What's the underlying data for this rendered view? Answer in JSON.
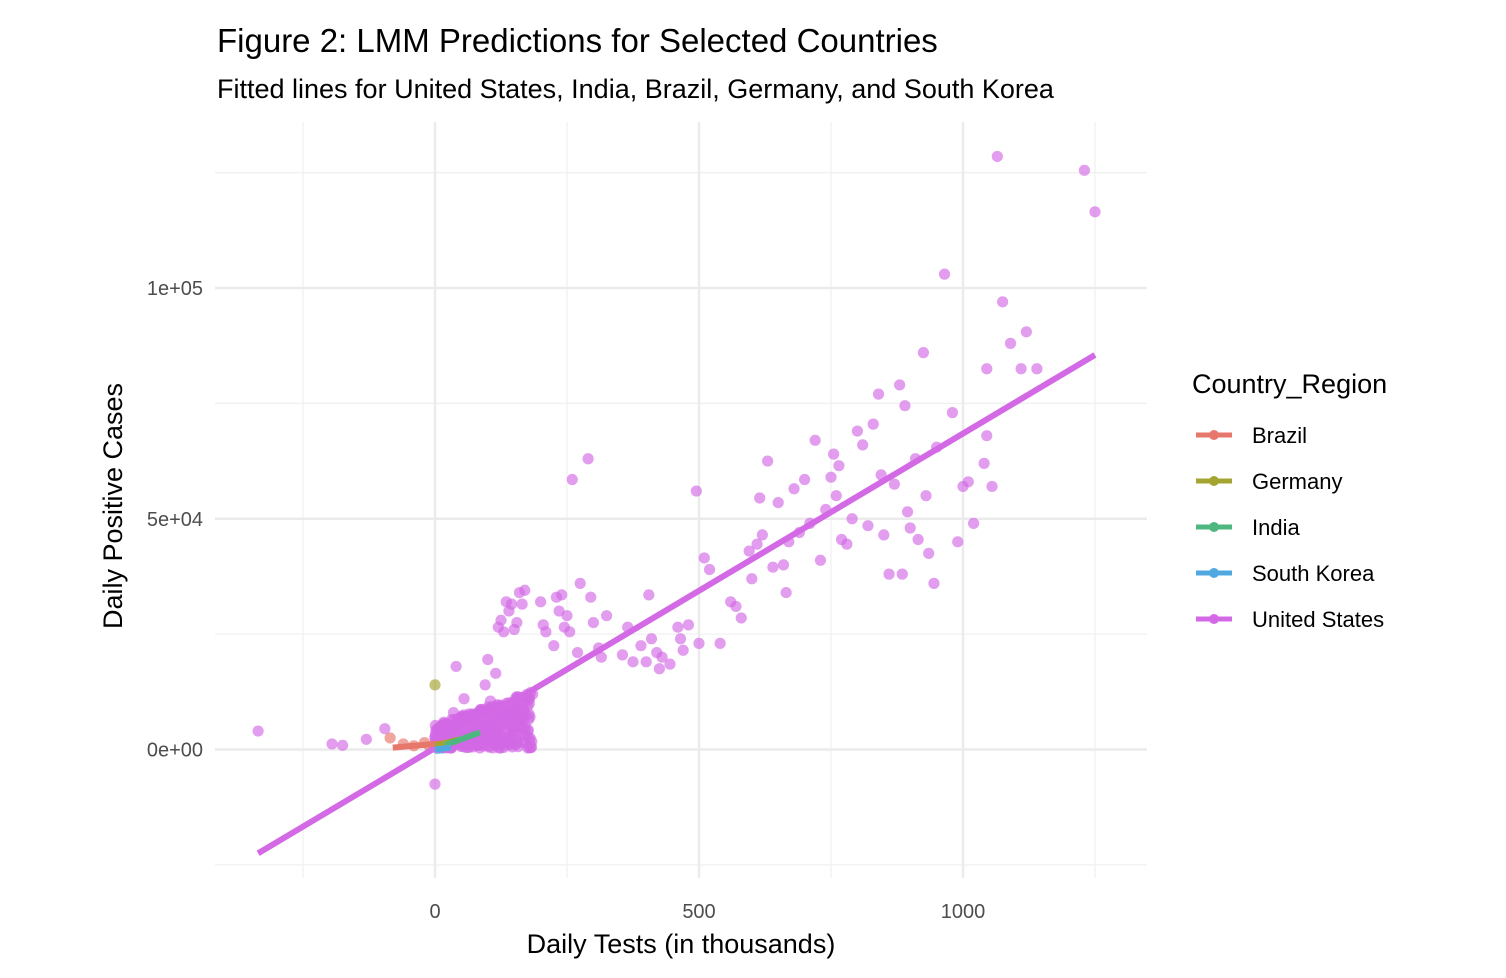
{
  "chart_data": {
    "type": "scatter",
    "title": "Figure 2: LMM Predictions for Selected Countries",
    "subtitle": "Fitted lines for United States, India, Brazil, Germany, and South Korea",
    "xlabel": "Daily Tests (in thousands)",
    "ylabel": "Daily Positive Cases",
    "xlim": [
      -420,
      1350
    ],
    "ylim": [
      -27000,
      126000
    ],
    "x_ticks": [
      0,
      500,
      1000
    ],
    "x_tick_labels": [
      "0",
      "500",
      "1000"
    ],
    "x_minor_ticks": [
      -250,
      250,
      750,
      1250
    ],
    "y_ticks": [
      0,
      50000,
      100000
    ],
    "y_tick_labels": [
      "0e+00",
      "5e+04",
      "1e+05"
    ],
    "y_minor_ticks": [
      -25000,
      25000,
      75000,
      125000
    ],
    "grid": true,
    "legend": {
      "title": "Country_Region",
      "position": "right",
      "entries": [
        "Brazil",
        "Germany",
        "India",
        "South Korea",
        "United States"
      ]
    },
    "series": [
      {
        "name": "Brazil",
        "color": "#E7766B",
        "points": [
          [
            -85,
            2500
          ],
          [
            -60,
            1200
          ],
          [
            -40,
            800
          ],
          [
            -20,
            1500
          ],
          [
            -10,
            600
          ],
          [
            5,
            1800
          ],
          [
            15,
            1000
          ]
        ],
        "fit": [
          [
            -80,
            400
          ],
          [
            20,
            1400
          ]
        ]
      },
      {
        "name": "Germany",
        "color": "#A3A530",
        "points": [
          [
            0,
            14000
          ],
          [
            10,
            3000
          ],
          [
            25,
            2000
          ],
          [
            40,
            1500
          ]
        ],
        "fit": [
          [
            0,
            800
          ],
          [
            45,
            2200
          ]
        ]
      },
      {
        "name": "India",
        "color": "#4DB77F",
        "points": [
          [
            30,
            1500
          ],
          [
            50,
            2500
          ],
          [
            70,
            3500
          ],
          [
            85,
            3000
          ]
        ],
        "fit": [
          [
            20,
            1000
          ],
          [
            85,
            3700
          ]
        ]
      },
      {
        "name": "South Korea",
        "color": "#4FA8E0",
        "points": [
          [
            5,
            200
          ],
          [
            10,
            400
          ],
          [
            15,
            300
          ]
        ],
        "fit": [
          [
            0,
            0
          ],
          [
            30,
            400
          ]
        ]
      },
      {
        "name": "United States",
        "color": "#D369E5",
        "points": [
          [
            -335,
            4000
          ],
          [
            -195,
            1200
          ],
          [
            -175,
            900
          ],
          [
            -130,
            2200
          ],
          [
            -95,
            4500
          ],
          [
            0,
            -7500
          ],
          [
            35,
            8000
          ],
          [
            40,
            18000
          ],
          [
            55,
            11000
          ],
          [
            70,
            7500
          ],
          [
            80,
            5000
          ],
          [
            95,
            14000
          ],
          [
            100,
            19500
          ],
          [
            105,
            10500
          ],
          [
            115,
            16500
          ],
          [
            120,
            26500
          ],
          [
            125,
            28000
          ],
          [
            130,
            25500
          ],
          [
            135,
            32000
          ],
          [
            140,
            30000
          ],
          [
            145,
            31500
          ],
          [
            150,
            26000
          ],
          [
            155,
            27500
          ],
          [
            160,
            34000
          ],
          [
            165,
            31500
          ],
          [
            170,
            34500
          ],
          [
            185,
            12000
          ],
          [
            200,
            32000
          ],
          [
            205,
            27000
          ],
          [
            210,
            25500
          ],
          [
            225,
            22500
          ],
          [
            230,
            33000
          ],
          [
            235,
            30000
          ],
          [
            240,
            33500
          ],
          [
            245,
            26500
          ],
          [
            250,
            29000
          ],
          [
            255,
            25500
          ],
          [
            260,
            58500
          ],
          [
            270,
            21000
          ],
          [
            275,
            36000
          ],
          [
            290,
            63000
          ],
          [
            295,
            33000
          ],
          [
            300,
            27500
          ],
          [
            310,
            22000
          ],
          [
            315,
            20000
          ],
          [
            325,
            29000
          ],
          [
            355,
            20500
          ],
          [
            365,
            26500
          ],
          [
            375,
            19000
          ],
          [
            390,
            22500
          ],
          [
            400,
            19000
          ],
          [
            405,
            33500
          ],
          [
            410,
            24000
          ],
          [
            420,
            21000
          ],
          [
            425,
            17500
          ],
          [
            430,
            20000
          ],
          [
            445,
            18500
          ],
          [
            460,
            26500
          ],
          [
            465,
            24000
          ],
          [
            470,
            21500
          ],
          [
            480,
            27000
          ],
          [
            495,
            56000
          ],
          [
            500,
            23000
          ],
          [
            510,
            41500
          ],
          [
            520,
            39000
          ],
          [
            540,
            23000
          ],
          [
            560,
            32000
          ],
          [
            570,
            31000
          ],
          [
            580,
            28500
          ],
          [
            595,
            43000
          ],
          [
            600,
            37000
          ],
          [
            610,
            44500
          ],
          [
            615,
            54500
          ],
          [
            620,
            46500
          ],
          [
            630,
            62500
          ],
          [
            640,
            39500
          ],
          [
            650,
            53500
          ],
          [
            660,
            40000
          ],
          [
            665,
            34000
          ],
          [
            670,
            45000
          ],
          [
            680,
            56500
          ],
          [
            690,
            47000
          ],
          [
            700,
            58500
          ],
          [
            710,
            49000
          ],
          [
            720,
            67000
          ],
          [
            730,
            41000
          ],
          [
            740,
            52000
          ],
          [
            750,
            59000
          ],
          [
            755,
            64000
          ],
          [
            760,
            55000
          ],
          [
            765,
            61500
          ],
          [
            770,
            45500
          ],
          [
            780,
            44500
          ],
          [
            790,
            50000
          ],
          [
            800,
            69000
          ],
          [
            810,
            66000
          ],
          [
            820,
            48500
          ],
          [
            830,
            70500
          ],
          [
            840,
            77000
          ],
          [
            845,
            59500
          ],
          [
            850,
            46500
          ],
          [
            860,
            38000
          ],
          [
            870,
            57500
          ],
          [
            880,
            79000
          ],
          [
            885,
            38000
          ],
          [
            890,
            74500
          ],
          [
            895,
            51500
          ],
          [
            900,
            48000
          ],
          [
            910,
            63000
          ],
          [
            915,
            45500
          ],
          [
            925,
            86000
          ],
          [
            930,
            55000
          ],
          [
            935,
            42500
          ],
          [
            945,
            36000
          ],
          [
            950,
            65500
          ],
          [
            965,
            103000
          ],
          [
            980,
            73000
          ],
          [
            990,
            45000
          ],
          [
            1000,
            57000
          ],
          [
            1010,
            58000
          ],
          [
            1020,
            49000
          ],
          [
            1040,
            62000
          ],
          [
            1045,
            68000
          ],
          [
            1055,
            57000
          ],
          [
            1065,
            128500
          ],
          [
            1075,
            97000
          ],
          [
            1090,
            88000
          ],
          [
            1110,
            82500
          ],
          [
            1120,
            90500
          ],
          [
            1140,
            82500
          ],
          [
            1230,
            125500
          ],
          [
            1250,
            116500
          ],
          [
            1045,
            82500
          ]
        ],
        "fit": [
          [
            -335,
            -22500
          ],
          [
            1250,
            85500
          ]
        ]
      }
    ]
  }
}
